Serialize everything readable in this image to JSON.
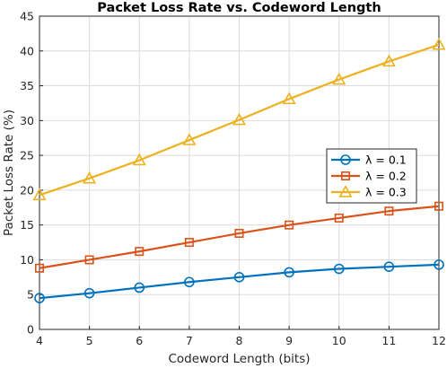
{
  "chart_data": {
    "type": "line",
    "title": "Packet Loss Rate vs. Codeword Length",
    "xlabel": "Codeword Length (bits)",
    "ylabel": "Packet Loss Rate (%)",
    "x": [
      4,
      5,
      6,
      7,
      8,
      9,
      10,
      11,
      12
    ],
    "xlim": [
      4,
      12
    ],
    "ylim": [
      0,
      45
    ],
    "xticks": [
      4,
      5,
      6,
      7,
      8,
      9,
      10,
      11,
      12
    ],
    "yticks": [
      0,
      5,
      10,
      15,
      20,
      25,
      30,
      35,
      40,
      45
    ],
    "grid": true,
    "legend_position": "right",
    "series": [
      {
        "name": "λ = 0.1",
        "color": "#0072BD",
        "marker": "circle",
        "values": [
          4.5,
          5.2,
          6.0,
          6.8,
          7.5,
          8.2,
          8.7,
          9.0,
          9.3
        ]
      },
      {
        "name": "λ = 0.2",
        "color": "#D95319",
        "marker": "square",
        "values": [
          8.8,
          10.0,
          11.2,
          12.5,
          13.8,
          15.0,
          16.0,
          17.0,
          17.7
        ]
      },
      {
        "name": "λ = 0.3",
        "color": "#EDB120",
        "marker": "triangle",
        "values": [
          19.3,
          21.7,
          24.3,
          27.2,
          30.1,
          33.1,
          35.9,
          38.5,
          40.9
        ]
      }
    ]
  }
}
